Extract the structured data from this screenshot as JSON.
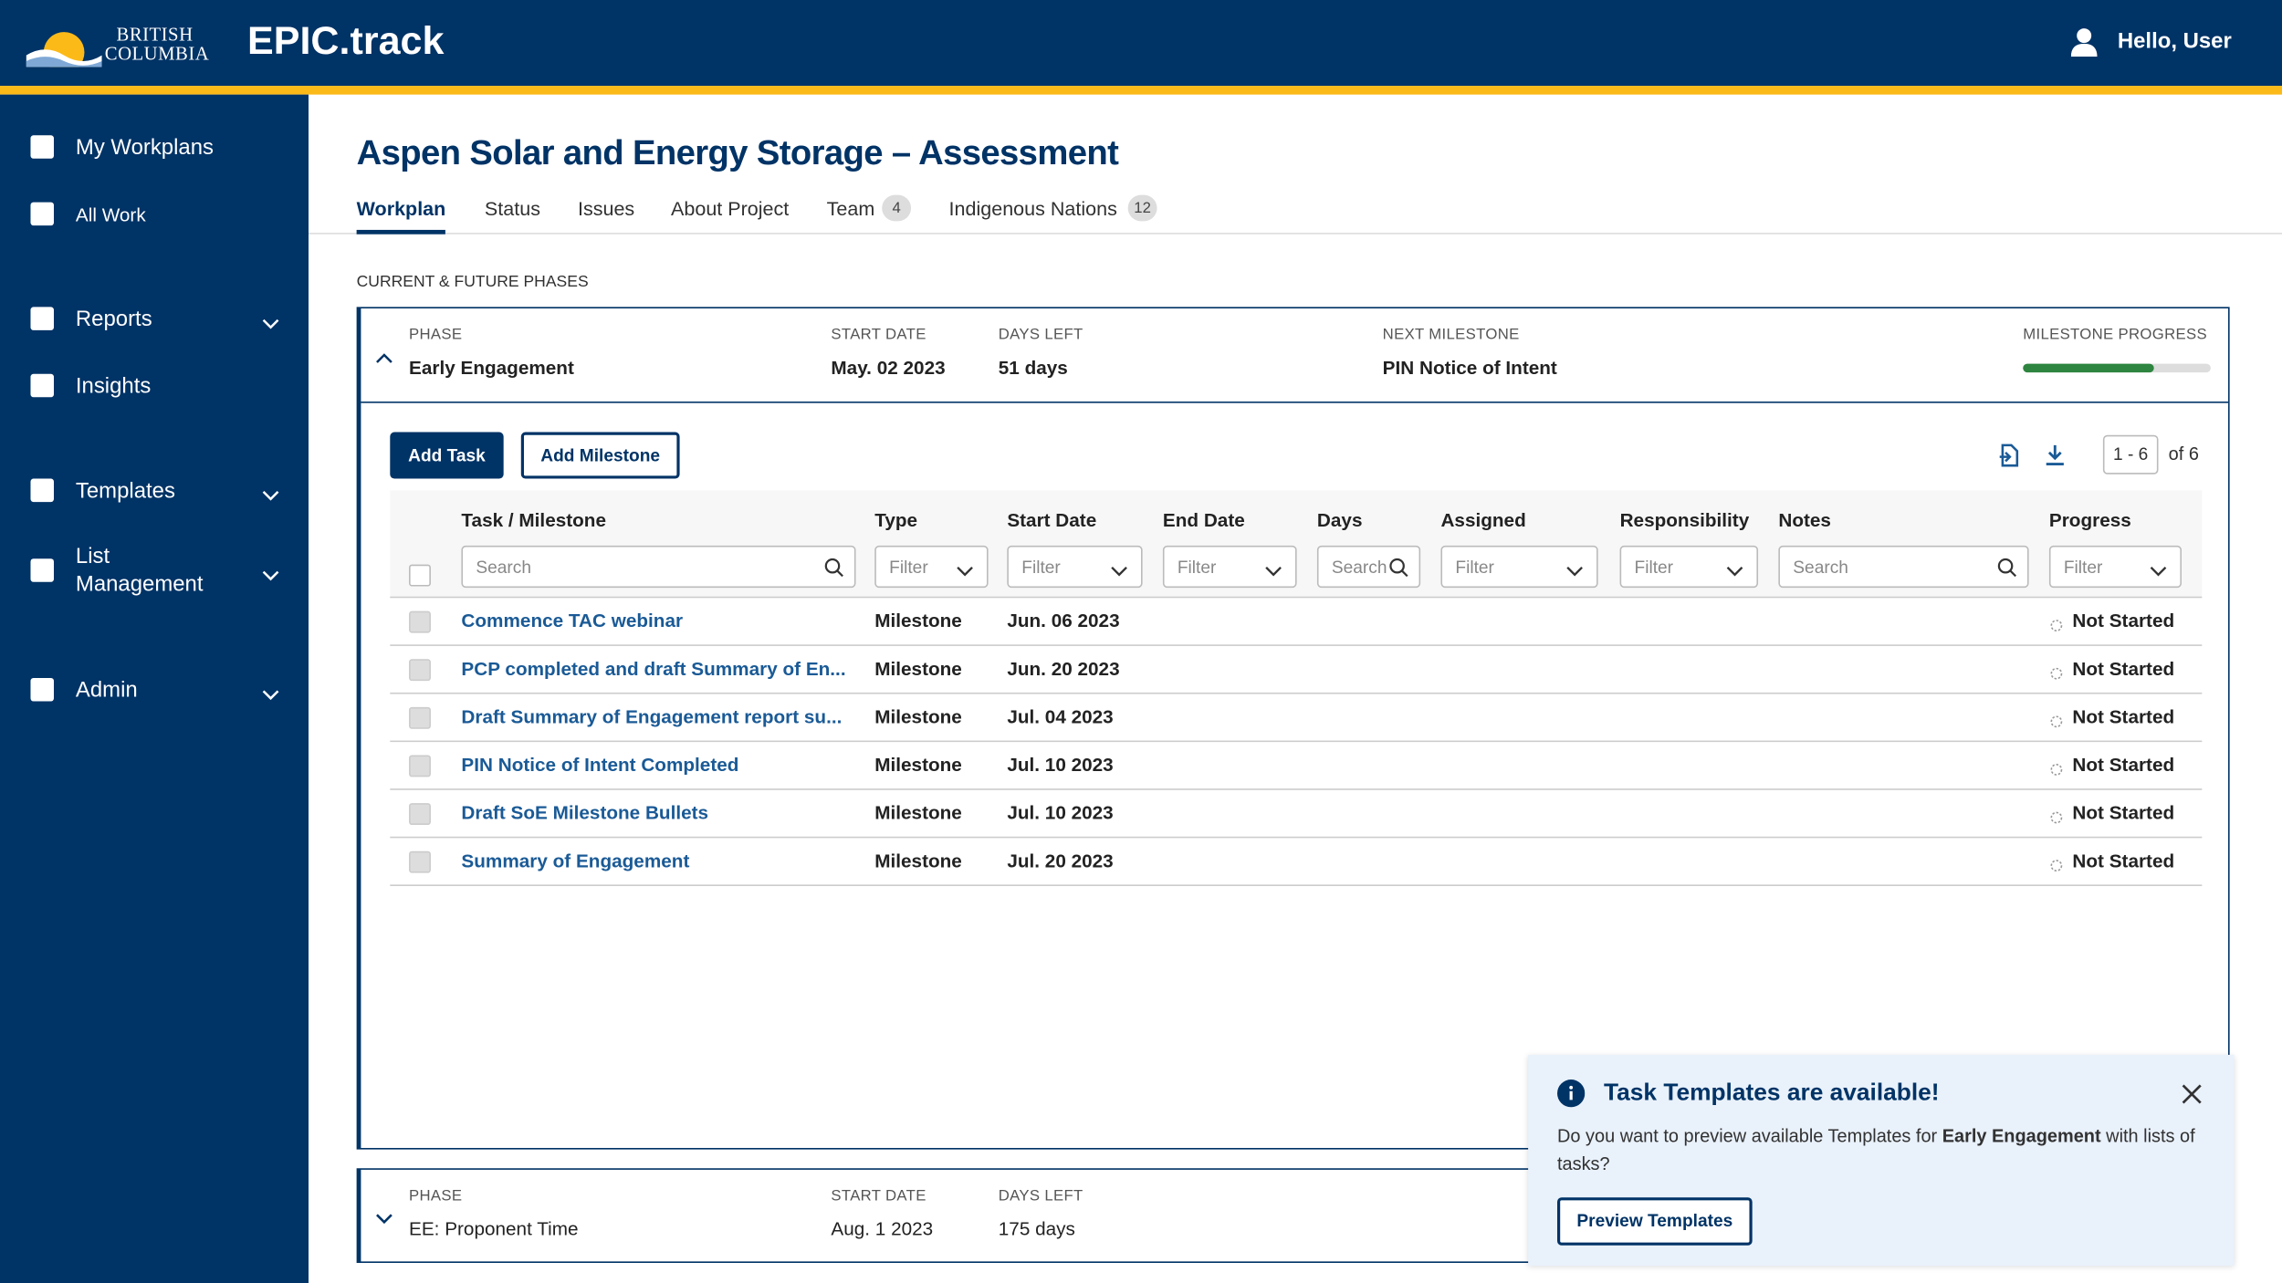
{
  "header": {
    "logo_line1": "British",
    "logo_line2": "Columbia",
    "app_name": "EPIC.track",
    "greeting": "Hello, User"
  },
  "sidebar": {
    "items": [
      {
        "label": "My Workplans",
        "chevron": false
      },
      {
        "label": "All Work",
        "chevron": false
      },
      {
        "label": "Reports",
        "chevron": true
      },
      {
        "label": "Insights",
        "chevron": false
      },
      {
        "label": "Templates",
        "chevron": true
      },
      {
        "label": "List Management",
        "chevron": true
      },
      {
        "label": "Admin",
        "chevron": true
      }
    ]
  },
  "project": {
    "title": "Aspen Solar and Energy Storage – Assessment"
  },
  "tabs": [
    {
      "label": "Workplan",
      "badge": null
    },
    {
      "label": "Status",
      "badge": null
    },
    {
      "label": "Issues",
      "badge": null
    },
    {
      "label": "About Project",
      "badge": null
    },
    {
      "label": "Team",
      "badge": "4"
    },
    {
      "label": "Indigenous Nations",
      "badge": "12"
    }
  ],
  "section_label": "CURRENT & FUTURE PHASES",
  "phases": [
    {
      "phase_label": "PHASE",
      "phase": "Early Engagement",
      "start_label": "START DATE",
      "start": "May. 02 2023",
      "days_label": "DAYS LEFT",
      "days": "51 days",
      "next_label": "NEXT MILESTONE",
      "next": "PIN Notice of Intent",
      "progress_label": "MILESTONE PROGRESS",
      "progress": 70
    },
    {
      "phase_label": "PHASE",
      "phase": "EE: Proponent Time",
      "start_label": "START DATE",
      "start": "Aug. 1 2023",
      "days_label": "DAYS LEFT",
      "days": "175 days"
    }
  ],
  "toolbar": {
    "add_task": "Add Task",
    "add_milestone": "Add Milestone",
    "page_range": "1 - 6",
    "page_total": "of 6"
  },
  "table": {
    "columns": [
      {
        "label": "Task / Milestone",
        "filter": "Search"
      },
      {
        "label": "Type",
        "filter": "Filter"
      },
      {
        "label": "Start Date",
        "filter": "Filter"
      },
      {
        "label": "End Date",
        "filter": "Filter"
      },
      {
        "label": "Days",
        "filter": "Search"
      },
      {
        "label": "Assigned",
        "filter": "Filter"
      },
      {
        "label": "Responsibility",
        "filter": "Filter"
      },
      {
        "label": "Notes",
        "filter": "Search"
      },
      {
        "label": "Progress",
        "filter": "Filter"
      }
    ],
    "rows": [
      [
        "Commence TAC webinar",
        "Milestone",
        "Jun. 06 2023",
        "Not Started"
      ],
      [
        "PCP completed and draft Summary of En...",
        "Milestone",
        "Jun. 20 2023",
        "Not Started"
      ],
      [
        "Draft Summary of Engagement report su...",
        "Milestone",
        "Jul. 04 2023",
        "Not Started"
      ],
      [
        "PIN Notice of Intent Completed",
        "Milestone",
        "Jul. 10 2023",
        "Not Started"
      ],
      [
        "Draft SoE Milestone Bullets",
        "Milestone",
        "Jul. 10 2023",
        "Not Started"
      ],
      [
        "Summary of Engagement",
        "Milestone",
        "Jul. 20 2023",
        "Not Started"
      ]
    ]
  },
  "toast": {
    "title": "Task Templates are available!",
    "text_before": "Do you want to preview available Templates for ",
    "text_bold": "Early Engagement",
    "text_after": " with lists of tasks?",
    "button": "Preview Templates"
  }
}
